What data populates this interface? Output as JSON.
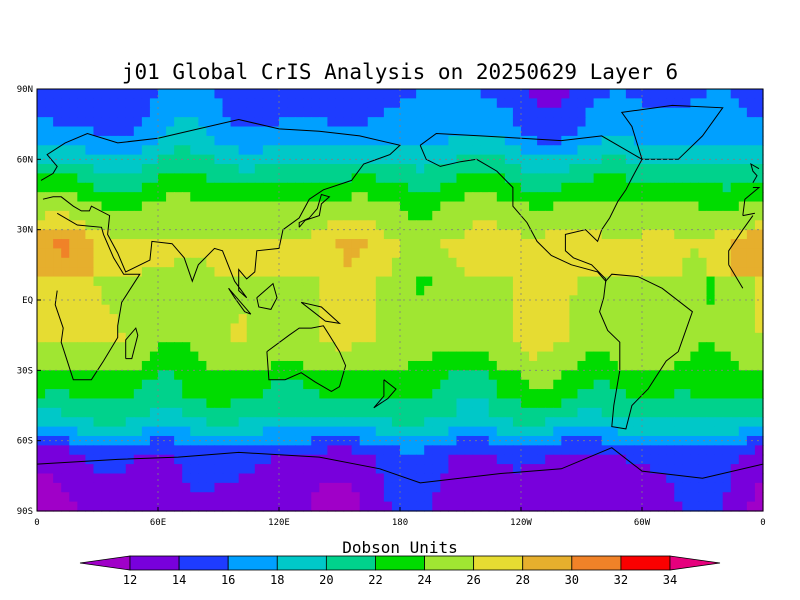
{
  "title": "j01 Global CrIS Analysis on 20250629 Layer 6",
  "lat_labels": [
    "90N",
    "60N",
    "30N",
    "EQ",
    "30S",
    "60S",
    "90S"
  ],
  "lon_labels": [
    "0",
    "60E",
    "120E",
    "180",
    "120W",
    "60W",
    "0"
  ],
  "colorbar": {
    "label": "Dobson Units",
    "ticks": [
      "12",
      "14",
      "16",
      "18",
      "20",
      "22",
      "24",
      "26",
      "28",
      "30",
      "32",
      "34"
    ],
    "colors": [
      "#a000c8",
      "#7800dc",
      "#1e3cff",
      "#00a0ff",
      "#00c8c8",
      "#00d28c",
      "#00dc00",
      "#a0e632",
      "#e6dc32",
      "#e6af2d",
      "#f08228",
      "#fa0000",
      "#e6007d"
    ]
  },
  "palette": {
    "background": "#ffffff",
    "ocean_frame": "#000000",
    "grid": "#808080"
  },
  "chart_data": {
    "type": "heatmap",
    "title": "j01 Global CrIS Analysis on 20250629 Layer 6",
    "xlabel": "",
    "ylabel": "",
    "xlim": [
      0,
      360
    ],
    "ylim": [
      -90,
      90
    ],
    "colorbar_label": "Dobson Units",
    "levels": [
      12,
      14,
      16,
      18,
      20,
      22,
      24,
      26,
      28,
      30,
      32,
      34
    ],
    "zonal_pattern": [
      {
        "lat": [
          90,
          70
        ],
        "value_range": [
          14,
          18
        ]
      },
      {
        "lat": [
          70,
          60
        ],
        "value_range": [
          18,
          20
        ]
      },
      {
        "lat": [
          60,
          40
        ],
        "value_range": [
          20,
          24
        ]
      },
      {
        "lat": [
          40,
          30
        ],
        "value_range": [
          24,
          26
        ]
      },
      {
        "lat": [
          30,
          10
        ],
        "value_range": [
          26,
          30
        ]
      },
      {
        "lat": [
          10,
          -20
        ],
        "value_range": [
          24,
          28
        ]
      },
      {
        "lat": [
          -20,
          -40
        ],
        "value_range": [
          22,
          26
        ]
      },
      {
        "lat": [
          -40,
          -55
        ],
        "value_range": [
          18,
          22
        ]
      },
      {
        "lat": [
          -55,
          -65
        ],
        "value_range": [
          14,
          18
        ]
      },
      {
        "lat": [
          -65,
          -90
        ],
        "value_range": [
          12,
          14
        ]
      }
    ]
  }
}
